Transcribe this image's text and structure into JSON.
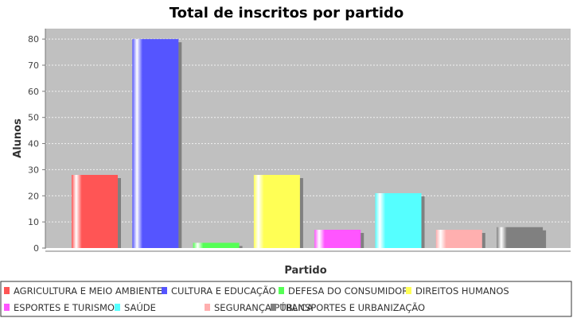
{
  "chart_data": {
    "type": "bar",
    "title": "Total de inscritos por partido",
    "xlabel": "Partido",
    "ylabel": "Alunos",
    "ylim": [
      0,
      84
    ],
    "yticks": [
      0,
      10,
      20,
      30,
      40,
      50,
      60,
      70,
      80
    ],
    "grid": true,
    "legend_position": "bottom",
    "plot_background": "#c0c0c0",
    "categories": [
      "AGRICULTURA E MEIO AMBIENTE",
      "CULTURA E EDUCAÇÃO",
      "DEFESA DO CONSUMIDOR",
      "DIREITOS HUMANOS",
      "ESPORTES E TURISMO",
      "SAÚDE",
      "SEGURANÇA PÚBLICA",
      "TRANSPORTES E URBANIZAÇÃO"
    ],
    "values": [
      28,
      80,
      2,
      28,
      7,
      21,
      7,
      8
    ],
    "colors": [
      "#ff5555",
      "#5555ff",
      "#55ff55",
      "#ffff55",
      "#ff55ff",
      "#55ffff",
      "#ffafaf",
      "#808080"
    ]
  }
}
